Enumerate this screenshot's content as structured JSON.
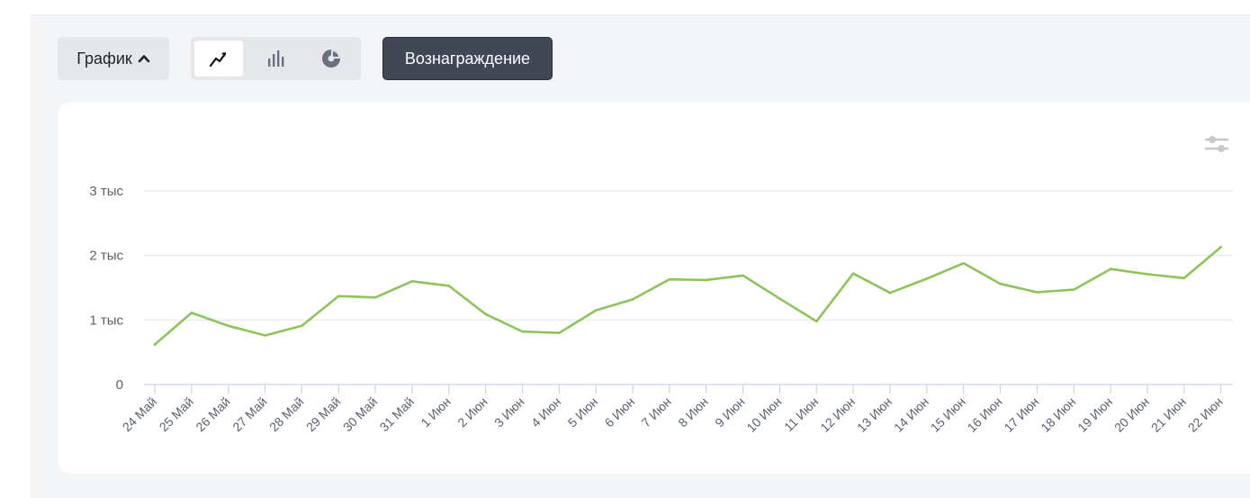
{
  "toolbar": {
    "graph_label": "График",
    "reward_label": "Вознаграждение",
    "view_modes": [
      "line-chart-icon",
      "bar-chart-icon",
      "pie-chart-icon"
    ],
    "active_view": "line-chart-icon"
  },
  "colors": {
    "line": "#8dc45b",
    "grid": "#e3e5e9",
    "axis": "#c7d3e6",
    "reward_button": "#424755"
  },
  "chart_data": {
    "type": "line",
    "x": [
      "24 Май",
      "25 Май",
      "26 Май",
      "27 Май",
      "28 Май",
      "29 Май",
      "30 Май",
      "31 Май",
      "1 Июн",
      "2 Июн",
      "3 Июн",
      "4 Июн",
      "5 Июн",
      "6 Июн",
      "7 Июн",
      "8 Июн",
      "9 Июн",
      "10 Июн",
      "11 Июн",
      "12 Июн",
      "13 Июн",
      "14 Июн",
      "15 Июн",
      "16 Июн",
      "17 Июн",
      "18 Июн",
      "19 Июн",
      "20 Июн",
      "21 Июн",
      "22 Июн"
    ],
    "series": [
      {
        "values": [
          620,
          1110,
          910,
          760,
          910,
          1370,
          1350,
          1600,
          1530,
          1090,
          820,
          800,
          1150,
          1320,
          1630,
          1620,
          1690,
          1330,
          980,
          1720,
          1420,
          1640,
          1880,
          1560,
          1430,
          1470,
          1790,
          1710,
          1650,
          2130
        ]
      }
    ],
    "ylim": [
      0,
      3000
    ],
    "yticks": [
      {
        "value": 0,
        "label": "0"
      },
      {
        "value": 1000,
        "label": "1 тыс"
      },
      {
        "value": 2000,
        "label": "2 тыс"
      },
      {
        "value": 3000,
        "label": "3 тыс"
      }
    ],
    "grid": true,
    "legend": "none"
  }
}
